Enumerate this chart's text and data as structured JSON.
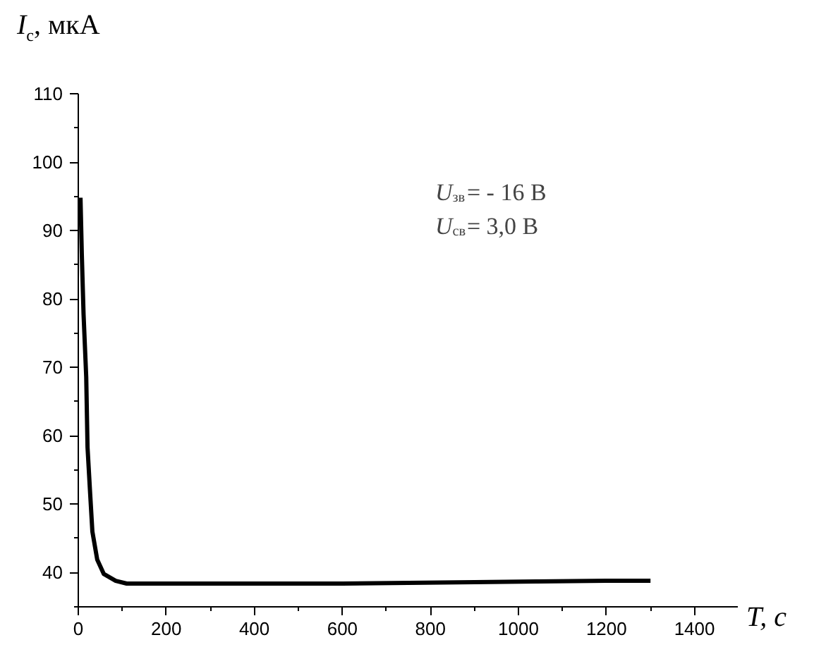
{
  "chart_data": {
    "type": "line",
    "xlabel": "T, с",
    "ylabel": "I$_{с}$, мкА",
    "annotations": [
      "U$_{зв}$= - 16 В",
      "U$_{св}$= 3,0 В"
    ],
    "x": [
      5,
      8,
      12,
      18,
      21,
      27,
      32,
      43,
      58,
      85,
      110,
      200,
      400,
      600,
      750,
      900,
      1040,
      1200,
      1300
    ],
    "series": [
      {
        "color": "#000000",
        "values": [
          94.8,
          86.5,
          77.7,
          68.6,
          58.3,
          51.5,
          46,
          41.9,
          39.8,
          38.8,
          38.4,
          38.4,
          38.4,
          38.4,
          38.5,
          38.6,
          38.7,
          38.8,
          38.8
        ]
      }
    ],
    "xlim": [
      0,
      1500
    ],
    "ylim": [
      35,
      110
    ],
    "xticks": [
      0,
      200,
      400,
      600,
      800,
      1000,
      1200,
      1400
    ],
    "yticks": [
      40,
      50,
      60,
      70,
      80,
      90,
      100,
      110
    ],
    "grid": false,
    "marker": "none",
    "line_style": "solid"
  }
}
